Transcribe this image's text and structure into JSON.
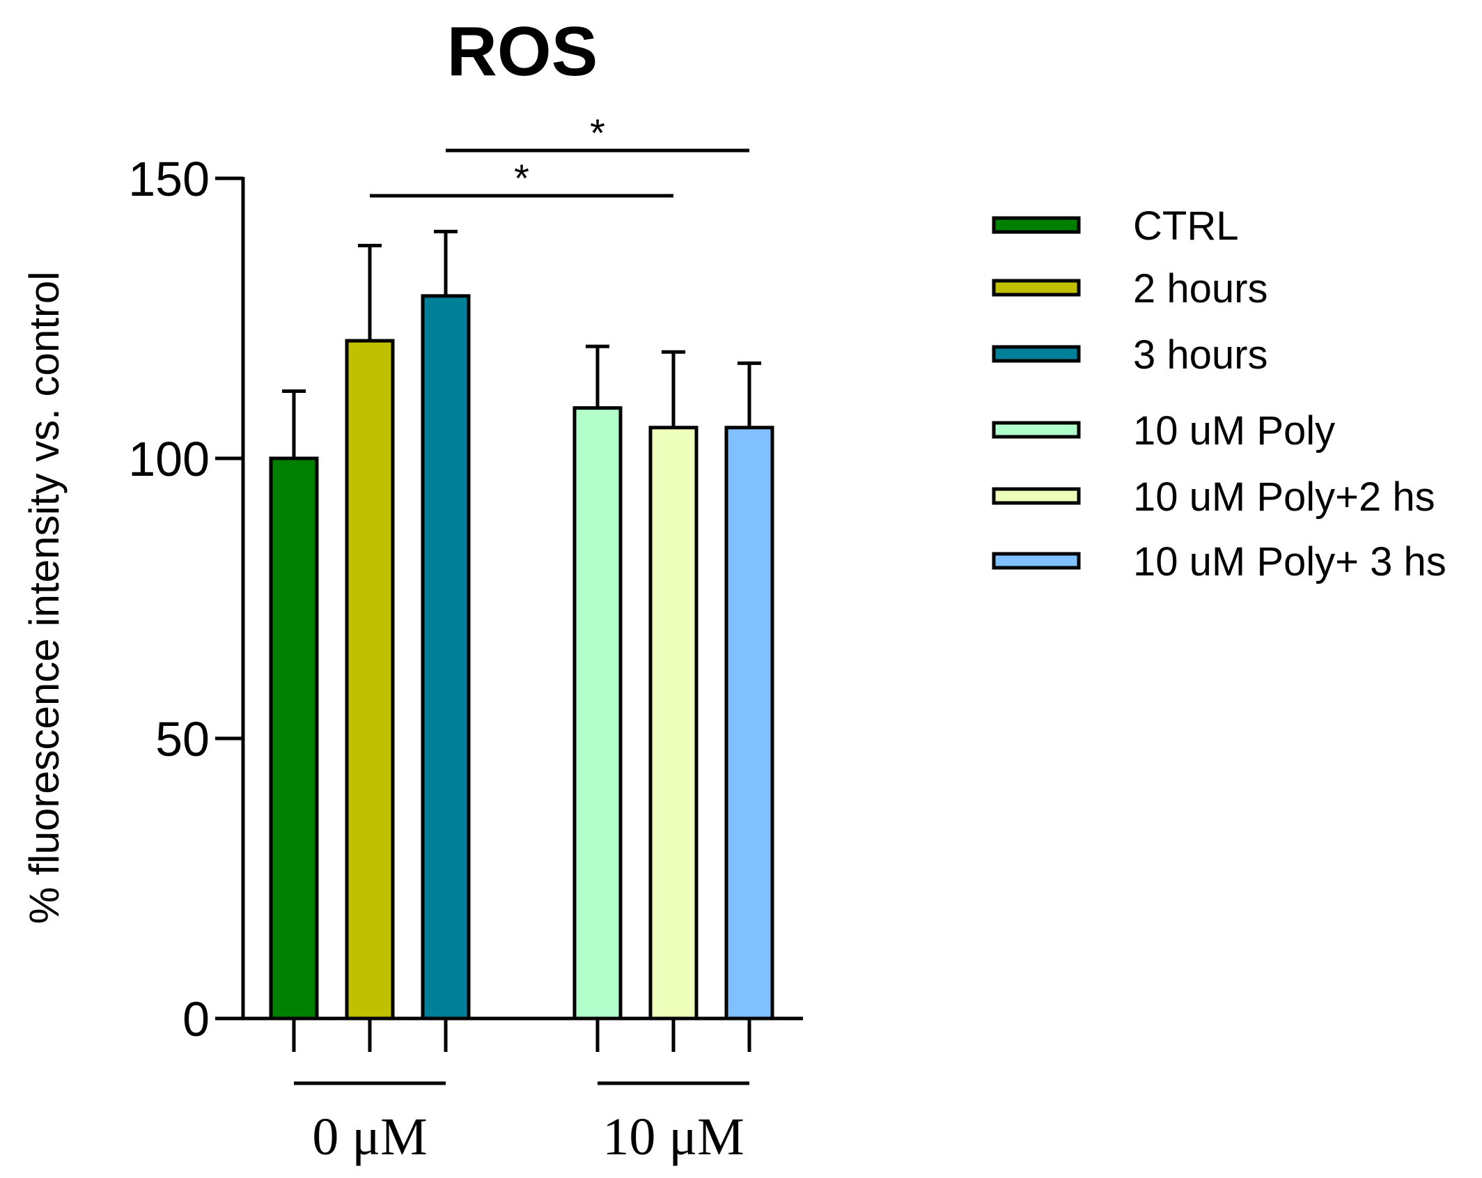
{
  "chart_data": {
    "type": "bar",
    "title": "ROS",
    "xlabel": "",
    "ylabel": "% fluorescence intensity vs. control",
    "ylim": [
      0,
      150
    ],
    "yticks": [
      0,
      50,
      100,
      150
    ],
    "grid": false,
    "legend_position": "right",
    "groups": [
      {
        "label": "0 μM",
        "series_indices": [
          0,
          1,
          2
        ]
      },
      {
        "label": "10 μM",
        "series_indices": [
          3,
          4,
          5
        ]
      }
    ],
    "series": [
      {
        "name": "CTRL",
        "value": 100,
        "error": 12,
        "color": "#007f00"
      },
      {
        "name": "2 hours",
        "value": 121,
        "error": 17,
        "color": "#c0c000"
      },
      {
        "name": "3 hours",
        "value": 129,
        "error": 11.5,
        "color": "#007f99"
      },
      {
        "name": "10 uM Poly",
        "value": 109,
        "error": 11,
        "color": "#b3ffcc"
      },
      {
        "name": "10 uM Poly+2 hs",
        "value": 105.5,
        "error": 13.5,
        "color": "#eeffbb"
      },
      {
        "name": "10 uM Poly+ 3 hs",
        "value": 105.5,
        "error": 11.5,
        "color": "#80c0ff"
      }
    ],
    "significance": [
      {
        "from": 1,
        "to": 4,
        "label": "*"
      },
      {
        "from": 2,
        "to": 5,
        "label": "*"
      }
    ]
  }
}
